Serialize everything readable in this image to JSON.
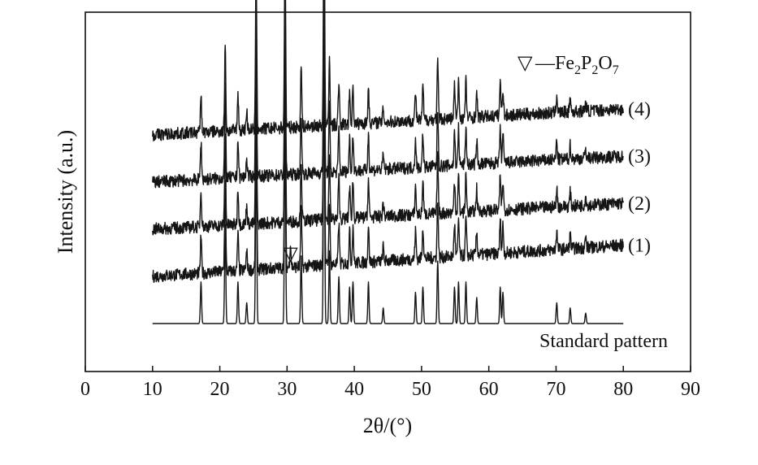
{
  "chart_data": {
    "type": "line",
    "title": "",
    "xlabel": "2θ/(°)",
    "ylabel": "Intensity (a.u.)",
    "xlim": [
      0,
      90
    ],
    "xticks": [
      0,
      10,
      20,
      30,
      40,
      50,
      60,
      70,
      80,
      90
    ],
    "x_range": [
      10,
      80
    ],
    "grid": false,
    "legend": "none",
    "annotation": {
      "symbol": "▽",
      "text_parts": [
        {
          "t": "—Fe",
          "sub": false
        },
        {
          "t": "2",
          "sub": true
        },
        {
          "t": "P",
          "sub": false
        },
        {
          "t": "2",
          "sub": true
        },
        {
          "t": "O",
          "sub": false
        },
        {
          "t": "7",
          "sub": true
        }
      ],
      "marker_x": 30.5,
      "marker_series": "(1)"
    },
    "peaks": [
      {
        "x": 17.2,
        "h": 0.08
      },
      {
        "x": 20.8,
        "h": 0.19
      },
      {
        "x": 22.7,
        "h": 0.08
      },
      {
        "x": 24.0,
        "h": 0.04
      },
      {
        "x": 25.4,
        "h": 0.34
      },
      {
        "x": 29.7,
        "h": 0.38
      },
      {
        "x": 32.1,
        "h": 0.13
      },
      {
        "x": 35.5,
        "h": 0.5
      },
      {
        "x": 36.3,
        "h": 0.14
      },
      {
        "x": 37.7,
        "h": 0.09
      },
      {
        "x": 39.3,
        "h": 0.07
      },
      {
        "x": 39.8,
        "h": 0.08
      },
      {
        "x": 42.1,
        "h": 0.08
      },
      {
        "x": 44.3,
        "h": 0.03
      },
      {
        "x": 49.1,
        "h": 0.06
      },
      {
        "x": 50.2,
        "h": 0.07
      },
      {
        "x": 52.4,
        "h": 0.12
      },
      {
        "x": 54.9,
        "h": 0.07
      },
      {
        "x": 55.5,
        "h": 0.08
      },
      {
        "x": 56.6,
        "h": 0.08
      },
      {
        "x": 58.2,
        "h": 0.05
      },
      {
        "x": 61.7,
        "h": 0.07
      },
      {
        "x": 62.1,
        "h": 0.06
      },
      {
        "x": 70.1,
        "h": 0.04
      },
      {
        "x": 72.1,
        "h": 0.03
      },
      {
        "x": 74.4,
        "h": 0.02
      }
    ],
    "series": [
      {
        "name": "Standard pattern",
        "offset": 0.0,
        "scale": 1.0,
        "noise": 0.0,
        "background_slope": 0.0
      },
      {
        "name": "(1)",
        "offset": 1.0,
        "scale": 0.9,
        "noise": 0.012,
        "background_slope": 0.06,
        "extra_peak": {
          "x": 30.5,
          "h": 0.05
        }
      },
      {
        "name": "(2)",
        "offset": 2.0,
        "scale": 0.9,
        "noise": 0.012,
        "background_slope": 0.05
      },
      {
        "name": "(3)",
        "offset": 3.0,
        "scale": 0.9,
        "noise": 0.012,
        "background_slope": 0.05
      },
      {
        "name": "(4)",
        "offset": 4.0,
        "scale": 0.9,
        "noise": 0.012,
        "background_slope": 0.05
      }
    ]
  }
}
